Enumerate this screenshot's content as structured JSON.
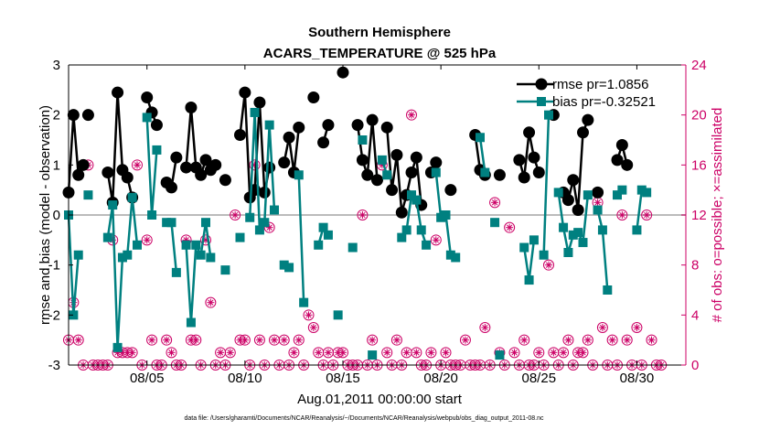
{
  "chart_data": {
    "type": "line",
    "title": "Southern Hemisphere",
    "subtitle": "ACARS_TEMPERATURE @ 525 hPa",
    "xlabel": "Aug.01,2011 00:00:00 start",
    "ylabel_left": "rmse and bias (model - observation)",
    "ylabel_right": "# of obs: o=possible; ×=assimilated",
    "xlim": [
      1.0,
      32.5
    ],
    "ylim_left": [
      -3,
      3
    ],
    "ylim_right": [
      0,
      24
    ],
    "xtick_values": [
      5,
      10,
      15,
      20,
      25,
      30
    ],
    "xtick_labels": [
      "08/05",
      "08/10",
      "08/15",
      "08/20",
      "08/25",
      "08/30"
    ],
    "ytick_left": [
      "-3",
      "-2",
      "-1",
      "0",
      "1",
      "2",
      "3"
    ],
    "ytick_right": [
      "0",
      "4",
      "8",
      "12",
      "16",
      "20",
      "24"
    ],
    "zero_line": 0,
    "colors": {
      "rmse": "#000000",
      "bias": "#008080",
      "obs": "#cc0066",
      "zero": "#bbbbbb"
    },
    "series": [
      {
        "name": "rmse pr=1.0856",
        "axis": "left",
        "segments": [
          [
            [
              1.0,
              0.45
            ],
            [
              1.25,
              2.0
            ],
            [
              1.5,
              0.8
            ],
            [
              1.75,
              1.0
            ]
          ],
          [
            [
              2.0,
              2.0
            ]
          ],
          [
            [
              3.0,
              0.85
            ],
            [
              3.25,
              0.25
            ],
            [
              3.5,
              2.45
            ],
            [
              3.75,
              0.9
            ],
            [
              4.0,
              0.75
            ],
            [
              4.25,
              0.35
            ]
          ],
          [
            [
              5.0,
              2.35
            ],
            [
              5.25,
              2.05
            ],
            [
              5.5,
              1.8
            ]
          ],
          [
            [
              6.0,
              0.65
            ],
            [
              6.25,
              0.55
            ],
            [
              6.5,
              1.15
            ]
          ],
          [
            [
              7.0,
              0.95
            ],
            [
              7.25,
              2.15
            ],
            [
              7.5,
              0.95
            ],
            [
              7.75,
              0.8
            ],
            [
              8.0,
              1.1
            ],
            [
              8.25,
              0.9
            ],
            [
              8.5,
              1.0
            ]
          ],
          [
            [
              9.0,
              0.7
            ]
          ],
          [
            [
              9.75,
              1.6
            ],
            [
              10.0,
              2.45
            ],
            [
              10.25,
              0.35
            ],
            [
              10.5,
              0.5
            ],
            [
              10.75,
              2.25
            ],
            [
              11.0,
              0.45
            ],
            [
              11.25,
              0.95
            ]
          ],
          [
            [
              12.0,
              1.05
            ],
            [
              12.25,
              1.55
            ],
            [
              12.5,
              0.85
            ],
            [
              12.75,
              1.75
            ]
          ],
          [
            [
              13.5,
              2.35
            ]
          ],
          [
            [
              14.0,
              1.45
            ],
            [
              14.25,
              1.8
            ]
          ],
          [
            [
              15.0,
              2.85
            ]
          ],
          [
            [
              15.75,
              1.8
            ],
            [
              16.0,
              1.1
            ],
            [
              16.25,
              0.8
            ],
            [
              16.5,
              1.9
            ],
            [
              16.75,
              0.7
            ]
          ],
          [
            [
              17.25,
              1.75
            ],
            [
              17.5,
              0.5
            ],
            [
              17.75,
              1.2
            ],
            [
              18.0,
              0.05
            ],
            [
              18.25,
              0.4
            ],
            [
              18.5,
              0.85
            ],
            [
              18.75,
              1.15
            ],
            [
              19.0,
              0.2
            ]
          ],
          [
            [
              19.5,
              0.85
            ],
            [
              19.75,
              1.05
            ]
          ],
          [
            [
              20.5,
              0.5
            ]
          ],
          [
            [
              21.75,
              1.6
            ],
            [
              22.0,
              0.9
            ],
            [
              22.25,
              0.8
            ]
          ],
          [
            [
              23.0,
              0.8
            ]
          ],
          [
            [
              24.0,
              1.1
            ],
            [
              24.25,
              0.75
            ],
            [
              24.5,
              1.65
            ],
            [
              24.75,
              1.15
            ],
            [
              25.0,
              0.85
            ]
          ],
          [
            [
              25.75,
              2.0
            ]
          ],
          [
            [
              26.25,
              0.45
            ],
            [
              26.5,
              0.3
            ],
            [
              26.75,
              0.7
            ],
            [
              27.0,
              0.1
            ],
            [
              27.25,
              1.65
            ],
            [
              27.5,
              1.9
            ]
          ],
          [
            [
              28.0,
              0.45
            ]
          ],
          [
            [
              29.0,
              1.1
            ],
            [
              29.25,
              1.4
            ],
            [
              29.5,
              1.0
            ]
          ]
        ]
      },
      {
        "name": "bias pr=-0.32521",
        "axis": "left",
        "segments": [
          [
            [
              1.0,
              0.0
            ],
            [
              1.25,
              -2.0
            ],
            [
              1.5,
              -0.8
            ]
          ],
          [
            [
              2.0,
              0.4
            ]
          ],
          [
            [
              3.0,
              -0.45
            ],
            [
              3.25,
              0.2
            ],
            [
              3.5,
              -2.65
            ],
            [
              3.75,
              -0.85
            ],
            [
              4.0,
              -0.8
            ],
            [
              4.25,
              0.35
            ],
            [
              4.5,
              -0.6
            ]
          ],
          [
            [
              5.0,
              1.95
            ],
            [
              5.25,
              0.0
            ],
            [
              5.5,
              1.3
            ]
          ],
          [
            [
              6.0,
              -0.15
            ],
            [
              6.25,
              -0.15
            ],
            [
              6.5,
              -1.15
            ]
          ],
          [
            [
              7.0,
              -0.6
            ],
            [
              7.25,
              -2.15
            ],
            [
              7.5,
              -0.6
            ],
            [
              7.75,
              -0.8
            ],
            [
              8.0,
              -0.15
            ],
            [
              8.25,
              -0.85
            ]
          ],
          [
            [
              9.0,
              -1.1
            ]
          ],
          [
            [
              9.75,
              -0.45
            ]
          ],
          [
            [
              10.25,
              -0.05
            ],
            [
              10.5,
              2.05
            ],
            [
              10.75,
              -0.3
            ],
            [
              11.0,
              -0.15
            ],
            [
              11.25,
              1.8
            ],
            [
              11.5,
              0.1
            ]
          ],
          [
            [
              12.0,
              -1.0
            ],
            [
              12.25,
              -1.05
            ]
          ],
          [
            [
              12.75,
              0.8
            ],
            [
              13.0,
              -1.75
            ]
          ],
          [
            [
              13.75,
              -0.6
            ],
            [
              14.0,
              -0.25
            ],
            [
              14.25,
              -0.4
            ]
          ],
          [
            [
              14.75,
              -2.0
            ]
          ],
          [
            [
              15.5,
              -0.65
            ]
          ],
          [
            [
              16.0,
              1.5
            ]
          ],
          [
            [
              16.5,
              -2.8
            ]
          ],
          [
            [
              17.0,
              1.1
            ],
            [
              17.25,
              0.8
            ]
          ],
          [
            [
              18.0,
              -0.45
            ],
            [
              18.25,
              -0.3
            ],
            [
              18.5,
              0.4
            ],
            [
              18.75,
              0.3
            ],
            [
              19.0,
              -0.3
            ],
            [
              19.25,
              -0.6
            ]
          ],
          [
            [
              19.75,
              0.85
            ],
            [
              20.0,
              -0.05
            ],
            [
              20.25,
              0.0
            ],
            [
              20.5,
              -0.8
            ],
            [
              20.75,
              -0.85
            ]
          ],
          [
            [
              22.0,
              1.55
            ],
            [
              22.25,
              0.85
            ]
          ],
          [
            [
              22.75,
              -0.15
            ]
          ],
          [
            [
              23.0,
              -2.8
            ]
          ],
          [
            [
              24.25,
              -0.65
            ],
            [
              24.5,
              -1.3
            ],
            [
              24.75,
              -0.5
            ]
          ],
          [
            [
              25.25,
              -0.8
            ],
            [
              25.5,
              2.0
            ]
          ],
          [
            [
              26.0,
              0.45
            ],
            [
              26.25,
              -0.25
            ],
            [
              26.5,
              -0.75
            ],
            [
              26.75,
              -0.4
            ],
            [
              27.0,
              -0.35
            ],
            [
              27.25,
              -0.55
            ],
            [
              27.5,
              0.4
            ]
          ],
          [
            [
              28.0,
              0.1
            ],
            [
              28.25,
              -0.3
            ],
            [
              28.5,
              -1.5
            ]
          ],
          [
            [
              29.0,
              0.4
            ],
            [
              29.25,
              0.5
            ]
          ],
          [
            [
              30.0,
              -0.3
            ],
            [
              30.25,
              0.5
            ],
            [
              30.5,
              0.45
            ]
          ]
        ]
      }
    ],
    "obs_counts": {
      "axis": "right",
      "note": "# of obs: o=possible; x=assimilated",
      "points": [
        [
          1.0,
          2
        ],
        [
          1.25,
          5
        ],
        [
          1.5,
          2
        ],
        [
          1.75,
          0
        ],
        [
          2.0,
          16
        ],
        [
          2.25,
          0
        ],
        [
          2.5,
          0
        ],
        [
          2.75,
          0
        ],
        [
          3.0,
          0
        ],
        [
          3.25,
          10
        ],
        [
          3.5,
          1
        ],
        [
          3.75,
          1
        ],
        [
          4.0,
          1
        ],
        [
          4.25,
          1
        ],
        [
          4.5,
          16
        ],
        [
          4.75,
          0
        ],
        [
          5.0,
          10
        ],
        [
          5.25,
          2
        ],
        [
          5.5,
          0
        ],
        [
          5.75,
          0
        ],
        [
          6.0,
          2
        ],
        [
          6.25,
          1
        ],
        [
          6.5,
          0
        ],
        [
          6.75,
          0
        ],
        [
          7.0,
          10
        ],
        [
          7.25,
          2
        ],
        [
          7.5,
          2
        ],
        [
          7.75,
          0
        ],
        [
          8.0,
          10
        ],
        [
          8.25,
          5
        ],
        [
          8.5,
          0
        ],
        [
          8.75,
          1
        ],
        [
          9.0,
          0
        ],
        [
          9.25,
          1
        ],
        [
          9.5,
          12
        ],
        [
          9.75,
          2
        ],
        [
          10.0,
          2
        ],
        [
          10.25,
          0
        ],
        [
          10.5,
          16
        ],
        [
          10.75,
          2
        ],
        [
          11.0,
          0
        ],
        [
          11.25,
          11
        ],
        [
          11.5,
          2
        ],
        [
          11.75,
          0
        ],
        [
          12.0,
          2
        ],
        [
          12.25,
          0
        ],
        [
          12.5,
          1
        ],
        [
          12.75,
          2
        ],
        [
          13.0,
          0
        ],
        [
          13.25,
          4
        ],
        [
          13.5,
          3
        ],
        [
          13.75,
          1
        ],
        [
          14.0,
          0
        ],
        [
          14.25,
          1
        ],
        [
          14.5,
          0
        ],
        [
          14.75,
          1
        ],
        [
          15.0,
          1
        ],
        [
          15.25,
          0
        ],
        [
          15.5,
          0
        ],
        [
          15.75,
          0
        ],
        [
          16.0,
          12
        ],
        [
          16.25,
          0
        ],
        [
          16.5,
          2
        ],
        [
          16.75,
          0
        ],
        [
          17.0,
          16
        ],
        [
          17.25,
          1
        ],
        [
          17.5,
          0
        ],
        [
          17.75,
          2
        ],
        [
          18.0,
          0
        ],
        [
          18.25,
          1
        ],
        [
          18.5,
          20
        ],
        [
          18.75,
          1
        ],
        [
          19.0,
          0
        ],
        [
          19.25,
          0
        ],
        [
          19.5,
          1
        ],
        [
          19.75,
          10
        ],
        [
          20.0,
          0
        ],
        [
          20.25,
          1
        ],
        [
          20.5,
          0
        ],
        [
          20.75,
          0
        ],
        [
          21.0,
          0
        ],
        [
          21.25,
          2
        ],
        [
          21.5,
          0
        ],
        [
          21.75,
          0
        ],
        [
          22.0,
          0
        ],
        [
          22.25,
          3
        ],
        [
          22.5,
          0
        ],
        [
          22.75,
          13
        ],
        [
          23.0,
          1
        ],
        [
          23.25,
          0
        ],
        [
          23.5,
          11
        ],
        [
          23.75,
          1
        ],
        [
          24.0,
          0
        ],
        [
          24.25,
          2
        ],
        [
          24.5,
          0
        ],
        [
          24.75,
          0
        ],
        [
          25.0,
          1
        ],
        [
          25.25,
          0
        ],
        [
          25.5,
          8
        ],
        [
          25.75,
          1
        ],
        [
          26.0,
          0
        ],
        [
          26.25,
          1
        ],
        [
          26.5,
          2
        ],
        [
          26.75,
          0
        ],
        [
          27.0,
          1
        ],
        [
          27.25,
          1
        ],
        [
          27.5,
          2
        ],
        [
          27.75,
          0
        ],
        [
          28.0,
          13
        ],
        [
          28.25,
          3
        ],
        [
          28.5,
          0
        ],
        [
          28.75,
          2
        ],
        [
          29.0,
          0
        ],
        [
          29.25,
          12
        ],
        [
          29.5,
          2
        ],
        [
          29.75,
          0
        ],
        [
          30.0,
          3
        ],
        [
          30.25,
          0
        ],
        [
          30.5,
          12
        ],
        [
          30.75,
          2
        ],
        [
          31.0,
          0
        ],
        [
          31.25,
          0
        ]
      ]
    },
    "legend": {
      "placement": "top-right",
      "entries": [
        "rmse pr=1.0856",
        "bias pr=-0.32521"
      ]
    }
  },
  "footer": "data file: /Users/gharamti/Documents/NCAR/Reanalysis/~/Documents/NCAR/Reanalysis/webpub/obs_diag_output_2011-08.nc"
}
